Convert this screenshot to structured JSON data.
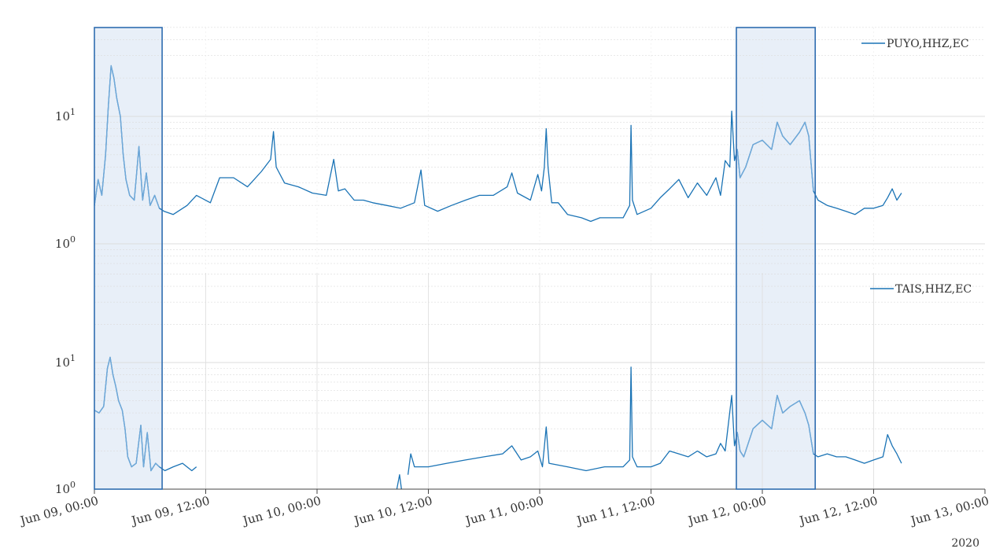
{
  "colors": {
    "line": "#1a73b5",
    "line_highlight": "#6fa8d8",
    "highlight_fill": "#e8eff8",
    "highlight_edge": "#2f6db0",
    "grid": "#dcdcdc",
    "axis": "#444444"
  },
  "chart_data": {
    "type": "line",
    "shared_x": {
      "unit": "hours since Jun 09, 00:00",
      "range": [
        0,
        96
      ],
      "tick_values": [
        0,
        12,
        24,
        36,
        48,
        60,
        72,
        84,
        96
      ],
      "tick_labels": [
        "Jun 09, 00:00",
        "Jun 09, 12:00",
        "Jun 10, 00:00",
        "Jun 10, 12:00",
        "Jun 11, 00:00",
        "Jun 11, 12:00",
        "Jun 12, 00:00",
        "Jun 12, 12:00",
        "Jun 13, 00:00"
      ],
      "year_label": "2020"
    },
    "highlight_windows": [
      [
        0,
        7.3
      ],
      [
        69.2,
        77.7
      ]
    ],
    "panels": [
      {
        "legend": "PUYO,HHZ,EC",
        "yscale": "log",
        "ylim": [
          0.7,
          55
        ],
        "y_tick_labels": [
          {
            "base": "10",
            "exp": "0",
            "value": 1
          },
          {
            "base": "10",
            "exp": "1",
            "value": 10
          }
        ],
        "grid": true,
        "segments": [
          [
            [
              0,
              2.0
            ],
            [
              0.4,
              3.2
            ],
            [
              0.8,
              2.4
            ],
            [
              1.2,
              5.0
            ],
            [
              1.5,
              12.0
            ],
            [
              1.8,
              25.0
            ],
            [
              2.1,
              20.0
            ],
            [
              2.4,
              14.0
            ],
            [
              2.8,
              10.0
            ],
            [
              3.1,
              5.0
            ],
            [
              3.4,
              3.2
            ],
            [
              3.8,
              2.4
            ],
            [
              4.3,
              2.2
            ],
            [
              4.8,
              5.8
            ],
            [
              5.2,
              2.2
            ],
            [
              5.6,
              3.6
            ],
            [
              6.0,
              2.0
            ],
            [
              6.5,
              2.4
            ],
            [
              7.0,
              1.9
            ],
            [
              7.5,
              1.8
            ],
            [
              8.5,
              1.7
            ],
            [
              10.0,
              2.0
            ],
            [
              11.0,
              2.4
            ],
            [
              12.5,
              2.1
            ],
            [
              13.5,
              3.3
            ],
            [
              15.0,
              3.3
            ],
            [
              16.5,
              2.8
            ],
            [
              18.0,
              3.7
            ],
            [
              19.0,
              4.6
            ],
            [
              19.3,
              7.6
            ],
            [
              19.6,
              4.0
            ],
            [
              20.5,
              3.0
            ],
            [
              22.0,
              2.8
            ],
            [
              23.5,
              2.5
            ],
            [
              25.0,
              2.4
            ],
            [
              25.8,
              4.6
            ],
            [
              26.3,
              2.6
            ],
            [
              27.0,
              2.7
            ],
            [
              28.0,
              2.2
            ],
            [
              29.0,
              2.2
            ],
            [
              30.0,
              2.1
            ],
            [
              31.5,
              2.0
            ],
            [
              33.0,
              1.9
            ],
            [
              34.5,
              2.1
            ],
            [
              35.2,
              3.8
            ],
            [
              35.6,
              2.0
            ],
            [
              37.0,
              1.8
            ],
            [
              38.5,
              2.0
            ],
            [
              40.0,
              2.2
            ],
            [
              41.5,
              2.4
            ],
            [
              43.0,
              2.4
            ],
            [
              44.5,
              2.8
            ],
            [
              45.0,
              3.6
            ],
            [
              45.6,
              2.5
            ],
            [
              47.0,
              2.2
            ],
            [
              47.8,
              3.5
            ],
            [
              48.2,
              2.6
            ],
            [
              48.5,
              4.0
            ],
            [
              48.7,
              8.0
            ],
            [
              48.9,
              4.0
            ],
            [
              49.3,
              2.1
            ],
            [
              50.0,
              2.1
            ],
            [
              51.0,
              1.7
            ],
            [
              52.5,
              1.6
            ],
            [
              53.5,
              1.5
            ],
            [
              54.5,
              1.6
            ],
            [
              56.0,
              1.6
            ],
            [
              57.0,
              1.6
            ],
            [
              57.7,
              2.0
            ],
            [
              57.85,
              8.5
            ],
            [
              58.0,
              2.2
            ],
            [
              58.5,
              1.7
            ],
            [
              60.0,
              1.9
            ],
            [
              61.0,
              2.3
            ],
            [
              62.0,
              2.7
            ],
            [
              63.0,
              3.2
            ],
            [
              64.0,
              2.3
            ],
            [
              65.0,
              3.0
            ],
            [
              66.0,
              2.4
            ],
            [
              67.0,
              3.3
            ],
            [
              67.5,
              2.4
            ],
            [
              68.0,
              4.5
            ],
            [
              68.5,
              4.0
            ],
            [
              68.7,
              11.0
            ],
            [
              69.0,
              4.5
            ],
            [
              69.3,
              5.5
            ],
            [
              69.6,
              3.3
            ],
            [
              70.2,
              4.0
            ],
            [
              71.0,
              6.0
            ],
            [
              72.0,
              6.5
            ],
            [
              73.0,
              5.5
            ],
            [
              73.6,
              9.0
            ],
            [
              74.2,
              7.0
            ],
            [
              75.0,
              6.0
            ],
            [
              76.0,
              7.5
            ],
            [
              76.6,
              9.0
            ],
            [
              77.0,
              7.0
            ],
            [
              77.5,
              2.6
            ],
            [
              78.0,
              2.2
            ],
            [
              79.0,
              2.0
            ],
            [
              80.0,
              1.9
            ],
            [
              81.0,
              1.8
            ],
            [
              82.0,
              1.7
            ],
            [
              83.0,
              1.9
            ],
            [
              84.0,
              1.9
            ],
            [
              85.0,
              2.0
            ],
            [
              85.5,
              2.3
            ],
            [
              86.0,
              2.7
            ],
            [
              86.5,
              2.2
            ],
            [
              87.0,
              2.5
            ]
          ]
        ]
      },
      {
        "legend": "TAIS,HHZ,EC",
        "yscale": "log",
        "ylim": [
          1,
          55
        ],
        "y_tick_labels": [
          {
            "base": "10",
            "exp": "0",
            "value": 1
          },
          {
            "base": "10",
            "exp": "1",
            "value": 10
          }
        ],
        "grid": true,
        "segments": [
          [
            [
              0,
              4.2
            ],
            [
              0.5,
              4.0
            ],
            [
              1.0,
              4.5
            ],
            [
              1.4,
              9.0
            ],
            [
              1.7,
              11.0
            ],
            [
              2.0,
              8.0
            ],
            [
              2.3,
              6.5
            ],
            [
              2.6,
              5.0
            ],
            [
              3.0,
              4.2
            ],
            [
              3.3,
              3.0
            ],
            [
              3.6,
              1.8
            ],
            [
              4.0,
              1.5
            ],
            [
              4.5,
              1.6
            ],
            [
              5.0,
              3.2
            ],
            [
              5.3,
              1.5
            ],
            [
              5.7,
              2.8
            ],
            [
              6.1,
              1.4
            ],
            [
              6.6,
              1.6
            ],
            [
              7.0,
              1.5
            ],
            [
              7.6,
              1.4
            ],
            [
              8.5,
              1.5
            ],
            [
              9.5,
              1.6
            ],
            [
              10.5,
              1.4
            ],
            [
              11.0,
              1.5
            ]
          ],
          [
            [
              32.6,
              1.0
            ],
            [
              32.9,
              1.3
            ],
            [
              33.1,
              1.0
            ]
          ],
          [
            [
              33.8,
              1.3
            ],
            [
              34.1,
              1.9
            ],
            [
              34.5,
              1.5
            ],
            [
              36.0,
              1.5
            ],
            [
              38.0,
              1.6
            ],
            [
              40.0,
              1.7
            ],
            [
              42.0,
              1.8
            ],
            [
              44.0,
              1.9
            ],
            [
              45.0,
              2.2
            ],
            [
              46.0,
              1.7
            ],
            [
              47.0,
              1.8
            ],
            [
              47.8,
              2.0
            ],
            [
              48.3,
              1.5
            ],
            [
              48.7,
              3.1
            ],
            [
              49.0,
              1.6
            ],
            [
              51.0,
              1.5
            ],
            [
              53.0,
              1.4
            ],
            [
              55.0,
              1.5
            ],
            [
              57.0,
              1.5
            ],
            [
              57.7,
              1.7
            ],
            [
              57.85,
              9.2
            ],
            [
              58.0,
              1.8
            ],
            [
              58.5,
              1.5
            ],
            [
              60.0,
              1.5
            ],
            [
              61.0,
              1.6
            ],
            [
              62.0,
              2.0
            ],
            [
              63.0,
              1.9
            ],
            [
              64.0,
              1.8
            ],
            [
              65.0,
              2.0
            ],
            [
              66.0,
              1.8
            ],
            [
              67.0,
              1.9
            ],
            [
              67.5,
              2.3
            ],
            [
              68.0,
              2.0
            ],
            [
              68.7,
              5.5
            ],
            [
              69.0,
              2.2
            ],
            [
              69.3,
              2.8
            ],
            [
              69.6,
              2.0
            ],
            [
              70.0,
              1.8
            ],
            [
              71.0,
              3.0
            ],
            [
              72.0,
              3.5
            ],
            [
              73.0,
              3.0
            ],
            [
              73.6,
              5.5
            ],
            [
              74.2,
              4.0
            ],
            [
              75.0,
              4.5
            ],
            [
              76.0,
              5.0
            ],
            [
              76.6,
              4.0
            ],
            [
              77.0,
              3.2
            ],
            [
              77.5,
              1.9
            ],
            [
              78.0,
              1.8
            ],
            [
              79.0,
              1.9
            ],
            [
              80.0,
              1.8
            ],
            [
              81.0,
              1.8
            ],
            [
              82.0,
              1.7
            ],
            [
              83.0,
              1.6
            ],
            [
              84.0,
              1.7
            ],
            [
              85.0,
              1.8
            ],
            [
              85.5,
              2.7
            ],
            [
              86.0,
              2.2
            ],
            [
              86.5,
              1.9
            ],
            [
              87.0,
              1.6
            ]
          ]
        ]
      }
    ]
  }
}
